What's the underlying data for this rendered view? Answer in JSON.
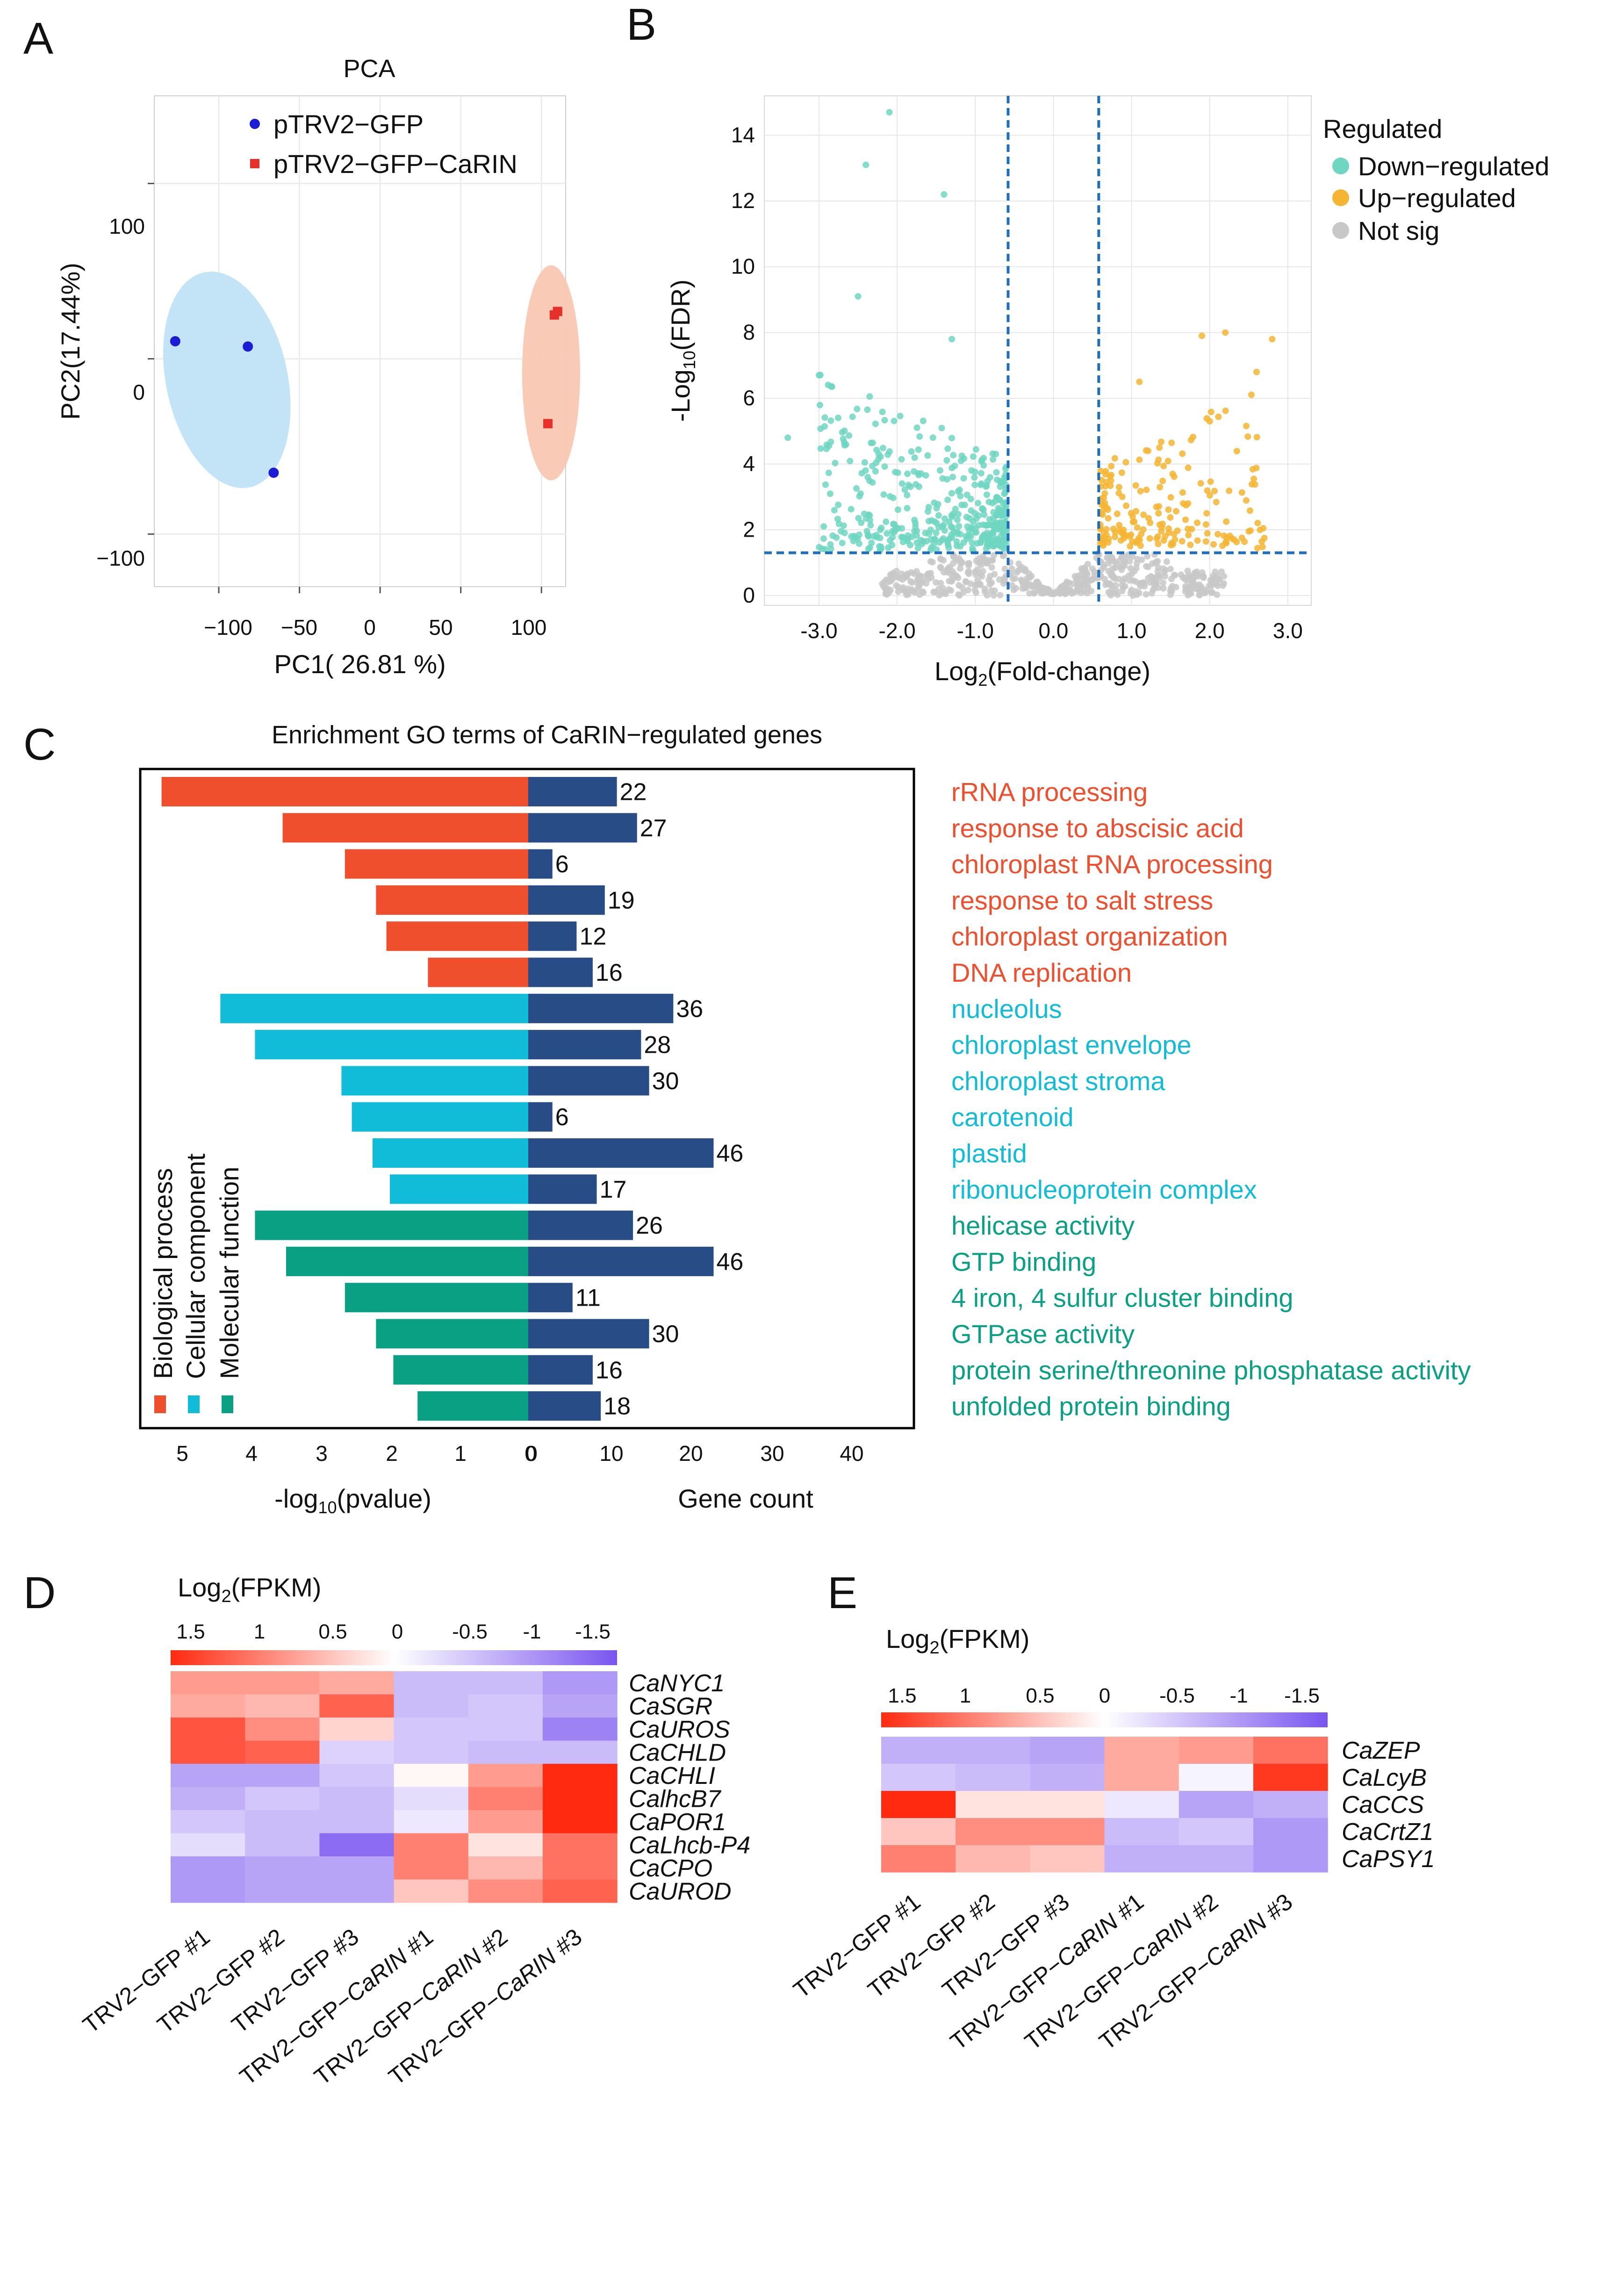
{
  "panels": {
    "A": "A",
    "B": "B",
    "C": "C",
    "D": "D",
    "E": "E"
  },
  "colors": {
    "blue_pt": "#1c1cd6",
    "red_pt": "#e8302a",
    "blue_ellipse": "#bfe3f5",
    "red_ellipse": "#f9c7b2",
    "down": "#6fd6c1",
    "up": "#f5b532",
    "notsig": "#c8c8c8",
    "guide": "#1f6fbf",
    "bp": "#f04f2e",
    "cc": "#10bcd8",
    "mf": "#0aa084",
    "count": "#284d86",
    "heat_hi": "#ff2a10",
    "heat_mid": "#ffffff",
    "heat_lo": "#7a55f0"
  },
  "pca": {
    "title": "PCA",
    "xlabel": "PC1( 26.81 %)",
    "ylabel": "PC2(17.44%)",
    "legend": [
      "pTRV2−GFP",
      "pTRV2−GFP−CaRIN"
    ],
    "xticks": [
      "−100",
      "−50",
      "0",
      "50",
      "100"
    ],
    "yticks": [
      "100",
      "0",
      "−100"
    ],
    "chart_data": {
      "type": "scatter",
      "title": "PCA",
      "xlabel": "PC1( 26.81 %)",
      "ylabel": "PC2(17.44%)",
      "xlim": [
        -140,
        115
      ],
      "ylim": [
        -130,
        150
      ],
      "series": [
        {
          "name": "pTRV2−GFP",
          "points": [
            [
              -127,
              10
            ],
            [
              -82,
              7
            ],
            [
              -66,
              -65
            ]
          ]
        },
        {
          "name": "pTRV2−GFP−CaRIN",
          "points": [
            [
              108,
              25
            ],
            [
              110,
              27
            ],
            [
              104,
              -37
            ]
          ]
        }
      ]
    }
  },
  "volcano": {
    "ylabel_main": "-Log",
    "ylabel_sub": "10",
    "ylabel_tail": "(FDR)",
    "xlabel_main": "Log",
    "xlabel_sub": "2",
    "xlabel_tail": "(Fold-change)",
    "xticks": [
      "-3.0",
      "-2.0",
      "-1.0",
      "0.0",
      "1.0",
      "2.0",
      "3.0"
    ],
    "yticks": [
      "0",
      "2",
      "4",
      "6",
      "8",
      "10",
      "12",
      "14"
    ],
    "legend_title": "Regulated",
    "legend": [
      "Down−regulated",
      "Up−regulated",
      "Not sig"
    ],
    "chart_data": {
      "type": "scatter",
      "xlabel": "Log2(Fold-change)",
      "ylabel": "-Log10(FDR)",
      "xlim": [
        -3.7,
        3.3
      ],
      "ylim": [
        -0.3,
        15.2
      ],
      "thresholds": {
        "x": [
          -0.58,
          0.58
        ],
        "y": 1.3
      },
      "highlight": {
        "down": [
          [
            -2.1,
            14.7
          ],
          [
            -2.4,
            13.1
          ],
          [
            -1.4,
            12.2
          ],
          [
            -2.5,
            9.1
          ],
          [
            -3.0,
            6.7
          ],
          [
            -1.3,
            7.8
          ],
          [
            -3.4,
            4.8
          ]
        ],
        "up": [
          [
            2.2,
            8.0
          ],
          [
            2.8,
            7.8
          ],
          [
            1.9,
            7.9
          ],
          [
            2.6,
            6.8
          ],
          [
            1.1,
            6.5
          ],
          [
            2.0,
            5.3
          ]
        ]
      }
    }
  },
  "go": {
    "title": "Enrichment GO terms of CaRIN−regulated genes",
    "xlabel_left_main": "-log",
    "xlabel_left_sub": "10",
    "xlabel_left_tail": "(pvalue)",
    "xlabel_right": "Gene count",
    "left_ticks": [
      "5",
      "4",
      "3",
      "2",
      "1",
      "0"
    ],
    "right_ticks": [
      "0",
      "10",
      "20",
      "30",
      "40"
    ],
    "categories": [
      "Biological process",
      "Cellular component",
      "Molecular function"
    ],
    "chart_data": {
      "type": "bar",
      "title": "Enrichment GO terms of CaRIN−regulated genes",
      "xlabel_left": "-log10(pvalue)",
      "xlabel_right": "Gene count",
      "pvalue_lim": [
        5.5,
        0
      ],
      "count_lim": [
        0,
        48
      ],
      "terms": [
        {
          "term": "rRNA processing",
          "category": "Biological process",
          "pvalue": 5.3,
          "count": 22
        },
        {
          "term": "response to abscisic acid",
          "category": "Biological process",
          "pvalue": 3.55,
          "count": 27
        },
        {
          "term": "chloroplast RNA processing",
          "category": "Biological process",
          "pvalue": 2.65,
          "count": 6
        },
        {
          "term": "response to salt stress",
          "category": "Biological process",
          "pvalue": 2.2,
          "count": 19
        },
        {
          "term": "chloroplast organization",
          "category": "Biological process",
          "pvalue": 2.05,
          "count": 12
        },
        {
          "term": "DNA replication",
          "category": "Biological process",
          "pvalue": 1.45,
          "count": 16
        },
        {
          "term": "nucleolus",
          "category": "Cellular component",
          "pvalue": 4.45,
          "count": 36
        },
        {
          "term": "chloroplast envelope",
          "category": "Cellular component",
          "pvalue": 3.95,
          "count": 28
        },
        {
          "term": "chloroplast stroma",
          "category": "Cellular component",
          "pvalue": 2.7,
          "count": 30
        },
        {
          "term": "carotenoid",
          "category": "Cellular component",
          "pvalue": 2.55,
          "count": 6
        },
        {
          "term": "plastid",
          "category": "Cellular component",
          "pvalue": 2.25,
          "count": 46
        },
        {
          "term": "ribonucleoprotein complex",
          "category": "Cellular component",
          "pvalue": 2.0,
          "count": 17
        },
        {
          "term": "helicase activity",
          "category": "Molecular function",
          "pvalue": 3.95,
          "count": 26
        },
        {
          "term": "GTP binding",
          "category": "Molecular function",
          "pvalue": 3.5,
          "count": 46
        },
        {
          "term": "4 iron, 4 sulfur cluster binding",
          "category": "Molecular function",
          "pvalue": 2.65,
          "count": 11
        },
        {
          "term": "GTPase activity",
          "category": "Molecular function",
          "pvalue": 2.2,
          "count": 30
        },
        {
          "term": "protein serine/threonine phosphatase activity",
          "category": "Molecular function",
          "pvalue": 1.95,
          "count": 16
        },
        {
          "term": "unfolded protein binding",
          "category": "Molecular function",
          "pvalue": 1.6,
          "count": 18
        }
      ]
    }
  },
  "heatD": {
    "scale_label_main": "Log",
    "scale_label_sub": "2",
    "scale_label_tail": "(FPKM)",
    "scale_ticks": [
      "1.5",
      "1",
      "0.5",
      "0",
      "-0.5",
      "-1",
      "-1.5"
    ],
    "chart_data": {
      "type": "heatmap",
      "rows": [
        "CaNYC1",
        "CaSGR",
        "CaUROS",
        "CaCHLD",
        "CaCHLI",
        "CalhcB7",
        "CaPOR1",
        "CaLhcb-P4",
        "CaCPO",
        "CaUROD"
      ],
      "cols": [
        "TRV2−GFP #1",
        "TRV2−GFP #2",
        "TRV2−GFP #3",
        "TRV2−GFP−CaRIN #1",
        "TRV2−GFP−CaRIN #2",
        "TRV2−GFP−CaRIN #3"
      ],
      "range": [
        -1.5,
        1.5
      ],
      "values": [
        [
          0.7,
          0.7,
          0.6,
          -0.6,
          -0.6,
          -0.9
        ],
        [
          0.6,
          0.5,
          1.1,
          -0.6,
          -0.5,
          -0.8
        ],
        [
          1.2,
          0.8,
          0.3,
          -0.5,
          -0.5,
          -1.1
        ],
        [
          1.2,
          1.1,
          -0.4,
          -0.5,
          -0.6,
          -0.6
        ],
        [
          -0.8,
          -0.8,
          -0.5,
          0.05,
          0.7,
          1.5
        ],
        [
          -0.7,
          -0.5,
          -0.6,
          -0.3,
          0.9,
          1.5
        ],
        [
          -0.5,
          -0.6,
          -0.6,
          -0.2,
          0.7,
          1.6
        ],
        [
          -0.3,
          -0.6,
          -1.3,
          0.9,
          0.2,
          1.0
        ],
        [
          -0.9,
          -0.8,
          -0.8,
          0.9,
          0.5,
          1.0
        ],
        [
          -0.9,
          -0.8,
          -0.8,
          0.4,
          0.8,
          1.1
        ]
      ]
    }
  },
  "heatE": {
    "scale_label_main": "Log",
    "scale_label_sub": "2",
    "scale_label_tail": "(FPKM)",
    "scale_ticks": [
      "1.5",
      "1",
      "0.5",
      "0",
      "-0.5",
      "-1",
      "-1.5"
    ],
    "chart_data": {
      "type": "heatmap",
      "rows": [
        "CaZEP",
        "CaLcyB",
        "CaCCS",
        "CaCrtZ1",
        "CaPSY1"
      ],
      "cols": [
        "TRV2−GFP #1",
        "TRV2−GFP #2",
        "TRV2−GFP #3",
        "TRV2−GFP−CaRIN #1",
        "TRV2−GFP−CaRIN #2",
        "TRV2−GFP−CaRIN #3"
      ],
      "range": [
        -1.5,
        1.5
      ],
      "values": [
        [
          -0.7,
          -0.7,
          -0.8,
          0.6,
          0.7,
          1.0
        ],
        [
          -0.5,
          -0.6,
          -0.7,
          0.6,
          -0.1,
          1.4
        ],
        [
          1.5,
          0.2,
          0.2,
          -0.2,
          -0.8,
          -0.7
        ],
        [
          0.4,
          0.8,
          0.8,
          -0.6,
          -0.5,
          -0.9
        ],
        [
          0.9,
          0.5,
          0.4,
          -0.7,
          -0.7,
          -0.9
        ]
      ]
    }
  },
  "sample_labels": {
    "prefix": "TRV2−GFP",
    "carin_prefix": "TRV2−GFP−",
    "carin_italic": "CaRIN",
    "s1": "#1",
    "s2": "#2",
    "s3": "#3"
  }
}
